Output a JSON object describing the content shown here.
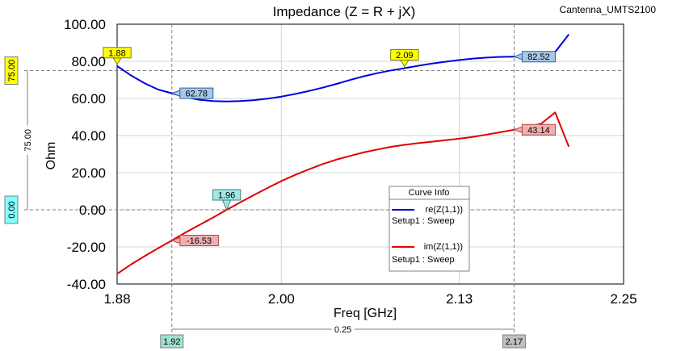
{
  "chart_data": {
    "type": "line",
    "title": "Impedance (Z = R + jX)",
    "project": "Cantenna_UMTS2100",
    "xlabel": "Freq [GHz]",
    "ylabel": "Ohm",
    "xlim": [
      1.88,
      2.25
    ],
    "ylim": [
      -40,
      100
    ],
    "xticks": [
      1.88,
      2.0,
      2.13,
      2.25
    ],
    "xtick_labels": [
      "1.88",
      "2.00",
      "2.13",
      "2.25"
    ],
    "yticks": [
      100,
      80,
      60,
      40,
      20,
      0,
      -20,
      -40
    ],
    "ytick_labels": [
      "100.00",
      "80.00",
      "60.00",
      "40.00",
      "20.00",
      "0.00",
      "-20.00",
      "-40.00"
    ],
    "series": [
      {
        "name": "re(Z(1,1))",
        "setup": "Setup1 : Sweep",
        "color": "#0000e0",
        "x": [
          1.88,
          1.89,
          1.9,
          1.91,
          1.92,
          1.93,
          1.94,
          1.95,
          1.96,
          1.97,
          1.98,
          1.99,
          2.0,
          2.01,
          2.02,
          2.03,
          2.04,
          2.05,
          2.06,
          2.07,
          2.08,
          2.09,
          2.1,
          2.11,
          2.12,
          2.13,
          2.14,
          2.15,
          2.16,
          2.17,
          2.18,
          2.19,
          2.2,
          2.21
        ],
        "values": [
          77.5,
          72.5,
          68.2,
          64.8,
          62.78,
          60.7,
          59.3,
          58.6,
          58.4,
          58.6,
          59.1,
          59.9,
          61.0,
          62.4,
          64.0,
          65.8,
          67.8,
          69.9,
          71.9,
          73.6,
          75.1,
          76.3,
          77.6,
          78.8,
          79.8,
          80.7,
          81.5,
          82.0,
          82.4,
          82.52,
          82.8,
          83.3,
          85.0,
          94.5
        ]
      },
      {
        "name": "im(Z(1,1))",
        "setup": "Setup1 : Sweep",
        "color": "#e00000",
        "x": [
          1.88,
          1.89,
          1.9,
          1.91,
          1.92,
          1.93,
          1.94,
          1.95,
          1.96,
          1.97,
          1.98,
          1.99,
          2.0,
          2.01,
          2.02,
          2.03,
          2.04,
          2.05,
          2.06,
          2.07,
          2.08,
          2.09,
          2.1,
          2.11,
          2.12,
          2.13,
          2.14,
          2.15,
          2.16,
          2.17,
          2.18,
          2.19,
          2.2,
          2.21
        ],
        "values": [
          -34.5,
          -29.5,
          -25.0,
          -20.7,
          -16.53,
          -12.2,
          -8.2,
          -4.2,
          0.0,
          4.0,
          8.0,
          11.8,
          15.5,
          18.8,
          21.8,
          24.6,
          27.0,
          29.0,
          30.9,
          32.5,
          33.9,
          35.0,
          35.9,
          36.7,
          37.5,
          38.3,
          39.3,
          40.5,
          41.8,
          43.14,
          44.5,
          46.5,
          52.5,
          34.0
        ]
      }
    ],
    "markers": [
      {
        "label": "1.88",
        "x": 1.88,
        "y": 77.5,
        "style": "freq"
      },
      {
        "label": "62.78",
        "x": 1.92,
        "y": 62.78,
        "style": "re"
      },
      {
        "label": "2.09",
        "x": 2.09,
        "y": 76.3,
        "style": "freq"
      },
      {
        "label": "82.52",
        "x": 2.17,
        "y": 82.52,
        "style": "re"
      },
      {
        "label": "1.96",
        "x": 1.96,
        "y": 0.0,
        "style": "im"
      },
      {
        "label": "-16.53",
        "x": 1.92,
        "y": -16.53,
        "style": "im"
      },
      {
        "label": "43.14",
        "x": 2.17,
        "y": 43.14,
        "style": "im"
      }
    ],
    "y_refs": [
      {
        "value": 75,
        "label": "75.00"
      },
      {
        "value": 0,
        "label": "0.00"
      }
    ],
    "y_delta_label": "75.00",
    "x_refs": [
      {
        "value": 1.92,
        "label": "1.92"
      },
      {
        "value": 2.17,
        "label": "2.17"
      }
    ],
    "x_delta_label": "0.25",
    "legend": {
      "title": "Curve Info",
      "placement": "lower-right"
    },
    "grid": true
  }
}
